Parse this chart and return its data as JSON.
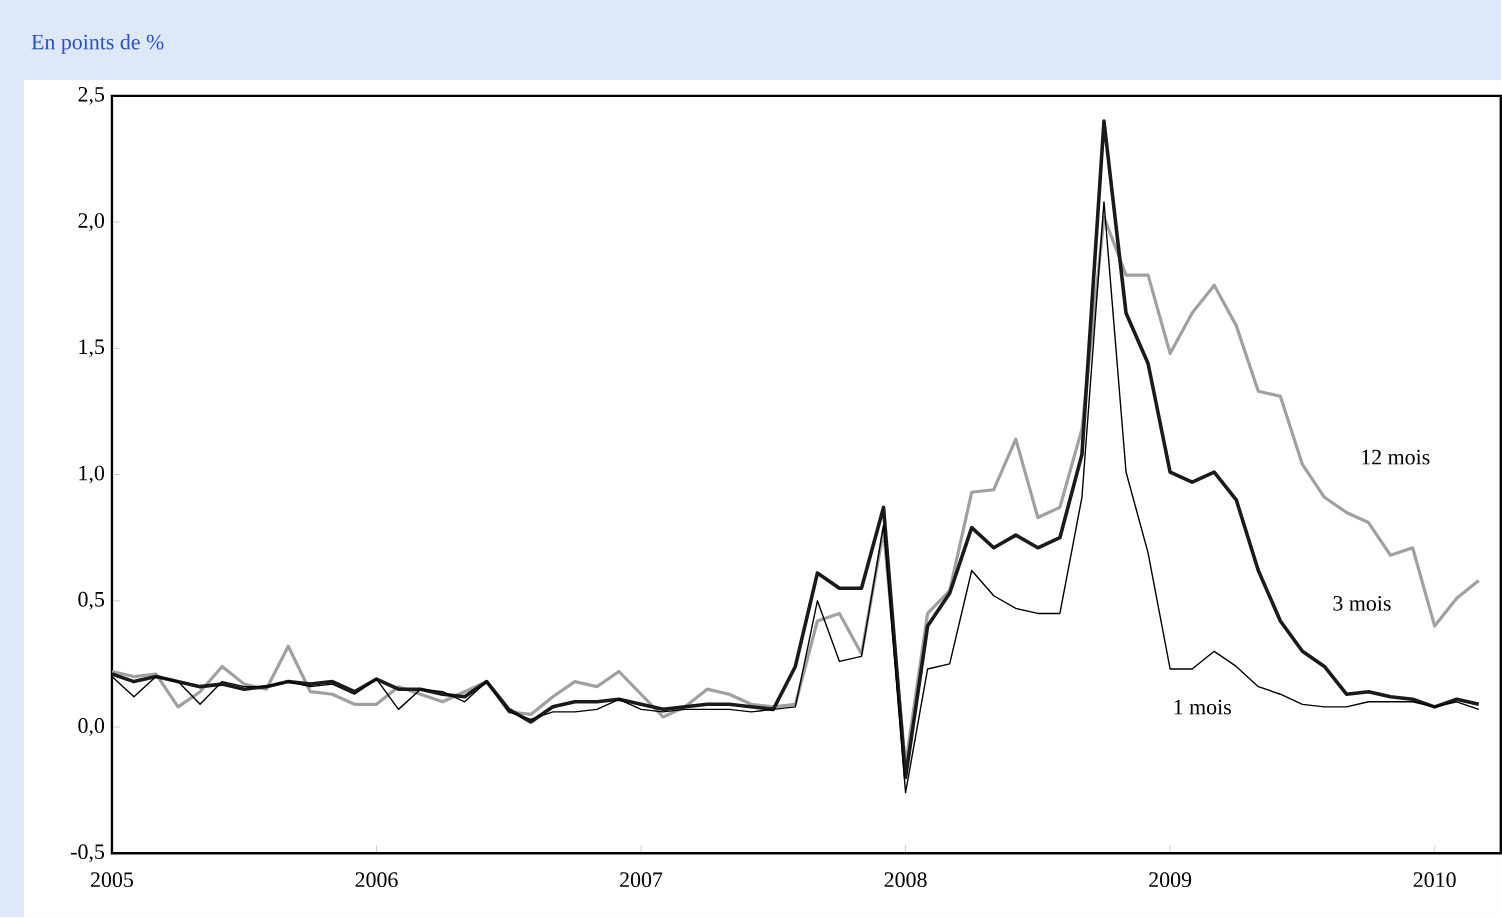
{
  "chart_data": {
    "type": "line",
    "title": "En points de %",
    "x": [
      "2005-01",
      "2005-02",
      "2005-03",
      "2005-04",
      "2005-05",
      "2005-06",
      "2005-07",
      "2005-08",
      "2005-09",
      "2005-10",
      "2005-11",
      "2005-12",
      "2006-01",
      "2006-02",
      "2006-03",
      "2006-04",
      "2006-05",
      "2006-06",
      "2006-07",
      "2006-08",
      "2006-09",
      "2006-10",
      "2006-11",
      "2006-12",
      "2007-01",
      "2007-02",
      "2007-03",
      "2007-04",
      "2007-05",
      "2007-06",
      "2007-07",
      "2007-08",
      "2007-09",
      "2007-10",
      "2007-11",
      "2007-12",
      "2008-01",
      "2008-02",
      "2008-03",
      "2008-04",
      "2008-05",
      "2008-06",
      "2008-07",
      "2008-08",
      "2008-09",
      "2008-10",
      "2008-11",
      "2008-12",
      "2009-01",
      "2009-02",
      "2009-03",
      "2009-04",
      "2009-05",
      "2009-06",
      "2009-07",
      "2009-08",
      "2009-09",
      "2009-10",
      "2009-11",
      "2009-12",
      "2010-01",
      "2010-02",
      "2010-03"
    ],
    "series": [
      {
        "color": "#a0a0a0",
        "values": [
          0.22,
          0.2,
          0.21,
          0.08,
          0.14,
          0.24,
          0.17,
          0.15,
          0.32,
          0.14,
          0.13,
          0.09,
          0.09,
          0.16,
          0.13,
          0.1,
          0.14,
          0.18,
          0.06,
          0.05,
          0.12,
          0.18,
          0.16,
          0.22,
          0.13,
          0.04,
          0.08,
          0.15,
          0.13,
          0.09,
          0.08,
          0.09,
          0.42,
          0.45,
          0.29,
          0.78,
          -0.15,
          0.45,
          0.54,
          0.93,
          0.94,
          1.14,
          0.83,
          0.87,
          1.18,
          2.02,
          1.79,
          1.79,
          1.48,
          1.64,
          1.75,
          1.59,
          1.33,
          1.31,
          1.04,
          0.91,
          0.85,
          0.81,
          0.68,
          0.71,
          0.4,
          0.51,
          0.58
        ]
      },
      {
        "color": "#1a1a1a",
        "values": [
          0.21,
          0.18,
          0.2,
          0.18,
          0.16,
          0.17,
          0.15,
          0.16,
          0.18,
          0.17,
          0.18,
          0.14,
          0.19,
          0.15,
          0.15,
          0.13,
          0.12,
          0.18,
          0.07,
          0.02,
          0.08,
          0.1,
          0.1,
          0.11,
          0.09,
          0.07,
          0.08,
          0.09,
          0.09,
          0.08,
          0.07,
          0.24,
          0.61,
          0.55,
          0.55,
          0.87,
          -0.2,
          0.4,
          0.53,
          0.79,
          0.71,
          0.76,
          0.71,
          0.75,
          1.08,
          2.4,
          1.64,
          1.44,
          1.01,
          0.97,
          1.01,
          0.9,
          0.62,
          0.42,
          0.3,
          0.24,
          0.13,
          0.14,
          0.12,
          0.11,
          0.08,
          0.11,
          0.09
        ]
      },
      {
        "color": "#000000",
        "values": [
          0.2,
          0.12,
          0.2,
          0.18,
          0.09,
          0.18,
          0.16,
          0.16,
          0.18,
          0.16,
          0.17,
          0.13,
          0.19,
          0.07,
          0.15,
          0.14,
          0.1,
          0.18,
          0.06,
          0.03,
          0.06,
          0.06,
          0.07,
          0.11,
          0.07,
          0.06,
          0.07,
          0.07,
          0.07,
          0.06,
          0.07,
          0.08,
          0.5,
          0.26,
          0.28,
          0.8,
          -0.26,
          0.23,
          0.25,
          0.62,
          0.52,
          0.47,
          0.45,
          0.45,
          0.91,
          2.08,
          1.01,
          0.69,
          0.23,
          0.23,
          0.3,
          0.24,
          0.16,
          0.13,
          0.09,
          0.08,
          0.08,
          0.1,
          0.1,
          0.1,
          0.08,
          0.1,
          0.07
        ]
      }
    ],
    "xlim": [
      "2005-01-01",
      "2010-04-01"
    ],
    "xticks": [
      "2005",
      "2006",
      "2007",
      "2008",
      "2009",
      "2010"
    ],
    "ylim": [
      -0.5,
      2.5
    ],
    "yticks": [
      {
        "value": -0.5,
        "label": "-0,5"
      },
      {
        "value": 0,
        "label": "0,0"
      },
      {
        "value": 0.5,
        "label": "0,5"
      },
      {
        "value": 1,
        "label": "1,0"
      },
      {
        "value": 1.5,
        "label": "1,5"
      },
      {
        "value": 2,
        "label": "2,0"
      },
      {
        "value": 2.5,
        "label": "2,5"
      }
    ],
    "annotations": [
      "12 mois",
      "3 mois",
      "1 mois"
    ]
  }
}
